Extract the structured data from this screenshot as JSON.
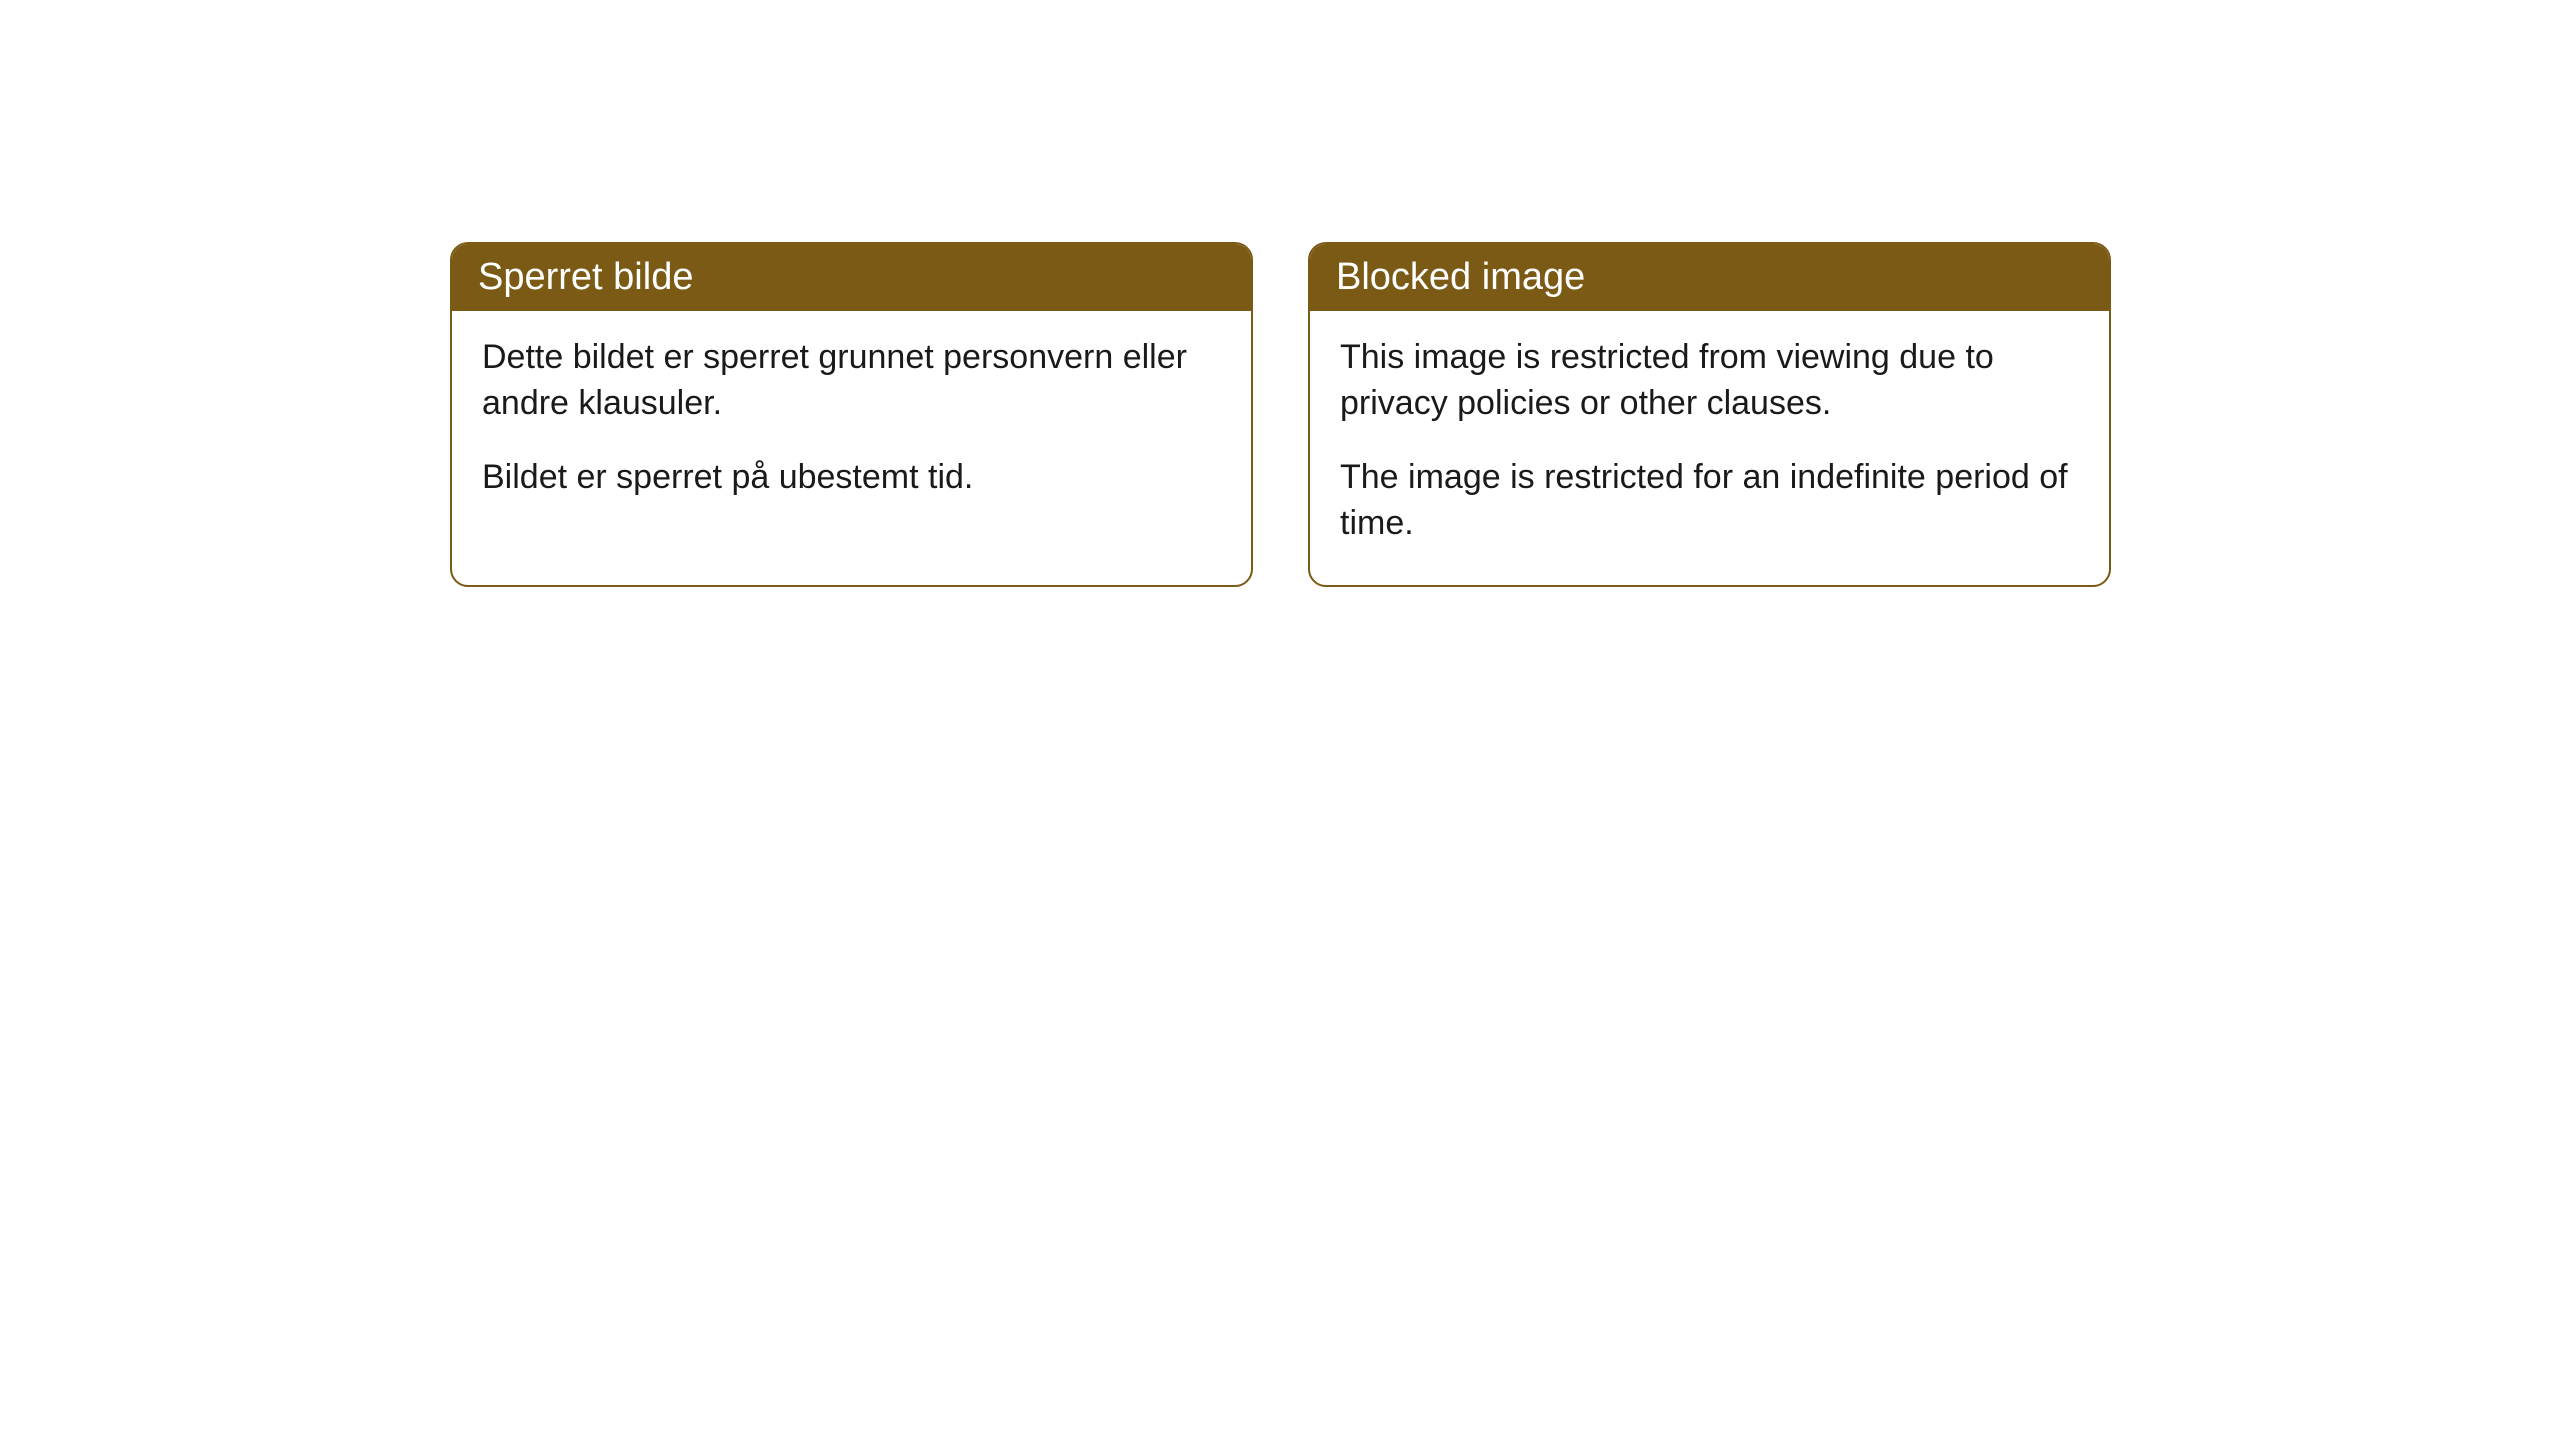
{
  "cards": [
    {
      "title": "Sperret bilde",
      "paragraph1": "Dette bildet er sperret grunnet personvern eller andre klausuler.",
      "paragraph2": "Bildet er sperret på ubestemt tid."
    },
    {
      "title": "Blocked image",
      "paragraph1": "This image is restricted from viewing due to privacy policies or other clauses.",
      "paragraph2": "The image is restricted for an indefinite period of time."
    }
  ],
  "style": {
    "header_bg": "#7a5a14",
    "header_text_color": "#ffffff",
    "border_color": "#7a5a14",
    "body_bg": "#ffffff",
    "body_text_color": "#1a1a1a",
    "border_radius": 18,
    "title_fontsize": 38,
    "body_fontsize": 34
  }
}
